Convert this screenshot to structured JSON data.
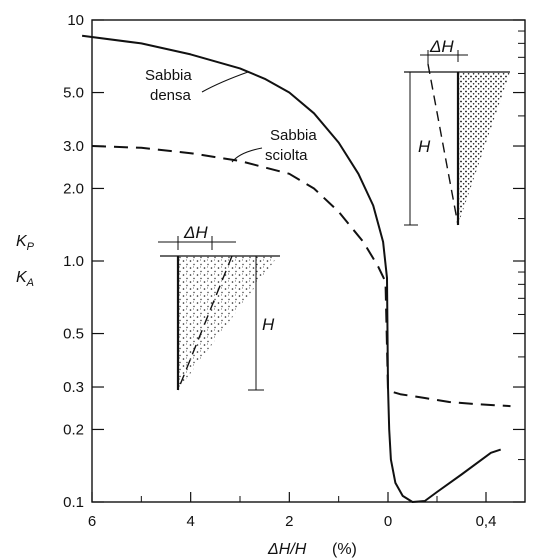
{
  "chart_data": {
    "type": "line",
    "title": "",
    "xlabel": "ΔH/H",
    "xunit": "(%)",
    "ylabel_top": "K",
    "ylabel_top_sub": "P",
    "ylabel_bottom": "K",
    "ylabel_bottom_sub": "A",
    "yscale": "log",
    "ylim": [
      0.1,
      10
    ],
    "y_ticks": [
      {
        "value": 10,
        "label": "10"
      },
      {
        "value": 5,
        "label": "5.0"
      },
      {
        "value": 3,
        "label": "3.0"
      },
      {
        "value": 2,
        "label": "2.0"
      },
      {
        "value": 1,
        "label": "1.0"
      },
      {
        "value": 0.5,
        "label": "0.5"
      },
      {
        "value": 0.3,
        "label": "0.3"
      },
      {
        "value": 0.2,
        "label": "0.2"
      },
      {
        "value": 0.1,
        "label": "0.1"
      }
    ],
    "x_ticks_left": [
      {
        "value": 6,
        "label": "6"
      },
      {
        "value": 4,
        "label": "4"
      },
      {
        "value": 2,
        "label": "2"
      },
      {
        "value": 0,
        "label": "0"
      }
    ],
    "x_ticks_right": [
      {
        "value": 0.4,
        "label": "0,4"
      }
    ],
    "xlim_left": [
      6,
      0
    ],
    "xlim_right": [
      0,
      0.5
    ],
    "grid": false,
    "series": [
      {
        "name": "Sabbia densa",
        "style": "solid",
        "passive": [
          [
            6.2,
            8.6
          ],
          [
            5,
            8.0
          ],
          [
            4,
            7.2
          ],
          [
            3,
            6.3
          ],
          [
            2.5,
            5.7
          ],
          [
            2,
            5.0
          ],
          [
            1.5,
            4.1
          ],
          [
            1,
            3.1
          ],
          [
            0.6,
            2.3
          ],
          [
            0.3,
            1.7
          ],
          [
            0.1,
            1.2
          ],
          [
            0.02,
            0.85
          ]
        ],
        "active": [
          [
            0,
            0.3
          ],
          [
            0.005,
            0.2
          ],
          [
            0.012,
            0.15
          ],
          [
            0.03,
            0.12
          ],
          [
            0.06,
            0.106
          ],
          [
            0.1,
            0.1
          ],
          [
            0.15,
            0.101
          ],
          [
            0.2,
            0.11
          ],
          [
            0.3,
            0.13
          ],
          [
            0.42,
            0.16
          ],
          [
            0.46,
            0.165
          ]
        ]
      },
      {
        "name": "Sabbia sciolta",
        "style": "dashed",
        "passive": [
          [
            6,
            3.0
          ],
          [
            5,
            2.95
          ],
          [
            4,
            2.8
          ],
          [
            3,
            2.6
          ],
          [
            2,
            2.3
          ],
          [
            1.5,
            2.0
          ],
          [
            1,
            1.6
          ],
          [
            0.5,
            1.2
          ],
          [
            0.2,
            0.95
          ],
          [
            0.05,
            0.82
          ]
        ],
        "active": [
          [
            0,
            0.29
          ],
          [
            0.05,
            0.28
          ],
          [
            0.15,
            0.27
          ],
          [
            0.25,
            0.26
          ],
          [
            0.35,
            0.255
          ],
          [
            0.5,
            0.25
          ]
        ]
      }
    ],
    "annotations": [
      {
        "label_lines": [
          "Sabbia",
          "densa"
        ]
      },
      {
        "label_lines": [
          "Sabbia",
          "sciolta"
        ]
      }
    ],
    "sketches": [
      {
        "name": "passive-wall-sketch",
        "dh_label": "ΔH",
        "h_label": "H"
      },
      {
        "name": "active-wall-sketch",
        "dh_label": "ΔH",
        "h_label": "H"
      }
    ]
  }
}
